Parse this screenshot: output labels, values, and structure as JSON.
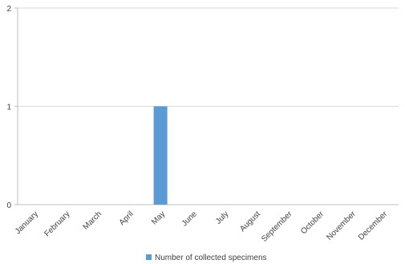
{
  "chart_data": {
    "type": "bar",
    "categories": [
      "January",
      "February",
      "March",
      "April",
      "May",
      "June",
      "July",
      "August",
      "September",
      "October",
      "November",
      "December"
    ],
    "series": [
      {
        "name": "Number of collected specimens",
        "values": [
          0,
          0,
          0,
          0,
          1,
          0,
          0,
          0,
          0,
          0,
          0,
          0
        ],
        "color": "#5b9bd5"
      }
    ],
    "title": "",
    "xlabel": "",
    "ylabel": "",
    "ylim": [
      0,
      2
    ],
    "yticks": [
      0,
      1,
      2
    ],
    "grid": true,
    "legend": "bottom"
  }
}
